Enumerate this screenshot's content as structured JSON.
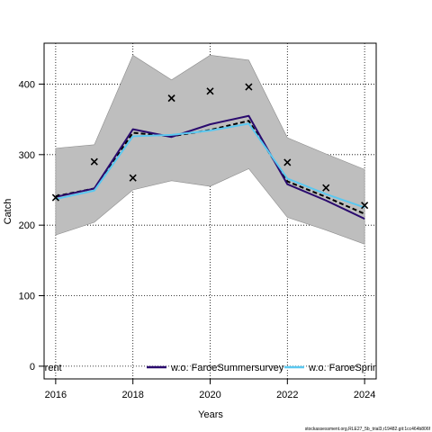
{
  "chart_data": {
    "type": "line",
    "xlabel": "Years",
    "ylabel": "Catch",
    "xlim": [
      2015.7,
      2024.3
    ],
    "ylim": [
      -18,
      458
    ],
    "x_ticks": [
      2016,
      2018,
      2020,
      2022,
      2024
    ],
    "y_ticks": [
      0,
      100,
      200,
      300,
      400
    ],
    "grid": true,
    "x": [
      2016,
      2017,
      2018,
      2019,
      2020,
      2021,
      2022,
      2023,
      2024
    ],
    "band": {
      "color": "#bebebe",
      "lower": [
        186,
        204,
        250,
        263,
        255,
        280,
        211,
        193,
        173
      ],
      "upper": [
        309,
        314,
        441,
        406,
        441,
        434,
        324,
        301,
        279
      ]
    },
    "series": [
      {
        "name": "",
        "style": "dashed",
        "color": "#000000",
        "values": [
          241,
          252,
          331,
          326,
          335,
          348,
          262,
          240,
          216
        ]
      },
      {
        "name": "w.o. FaroeSummersurvey",
        "style": "solid",
        "color": "#2a0a6e",
        "values": [
          240,
          252,
          336,
          325,
          343,
          355,
          258,
          235,
          209
        ]
      },
      {
        "name": "w.o. FaroeSpring",
        "style": "solid",
        "color": "#5bc8f0",
        "values": [
          237,
          249,
          326,
          328,
          334,
          344,
          266,
          244,
          225
        ]
      }
    ],
    "observations": {
      "marker": "x",
      "values": [
        239,
        290,
        267,
        380,
        390,
        396,
        289,
        253,
        228
      ]
    },
    "legend": {
      "placement": "bottom",
      "entries": [
        {
          "label": "rrent"
        },
        {
          "label": "w.o. FaroeSummersurvey",
          "color": "#2a0a6e"
        },
        {
          "label": "w.o. FaroeSpring",
          "color": "#5bc8f0"
        }
      ]
    },
    "footer": "stockassessment.org,RLE27_5b_trial3,r19482.git:1cc464b806f"
  }
}
